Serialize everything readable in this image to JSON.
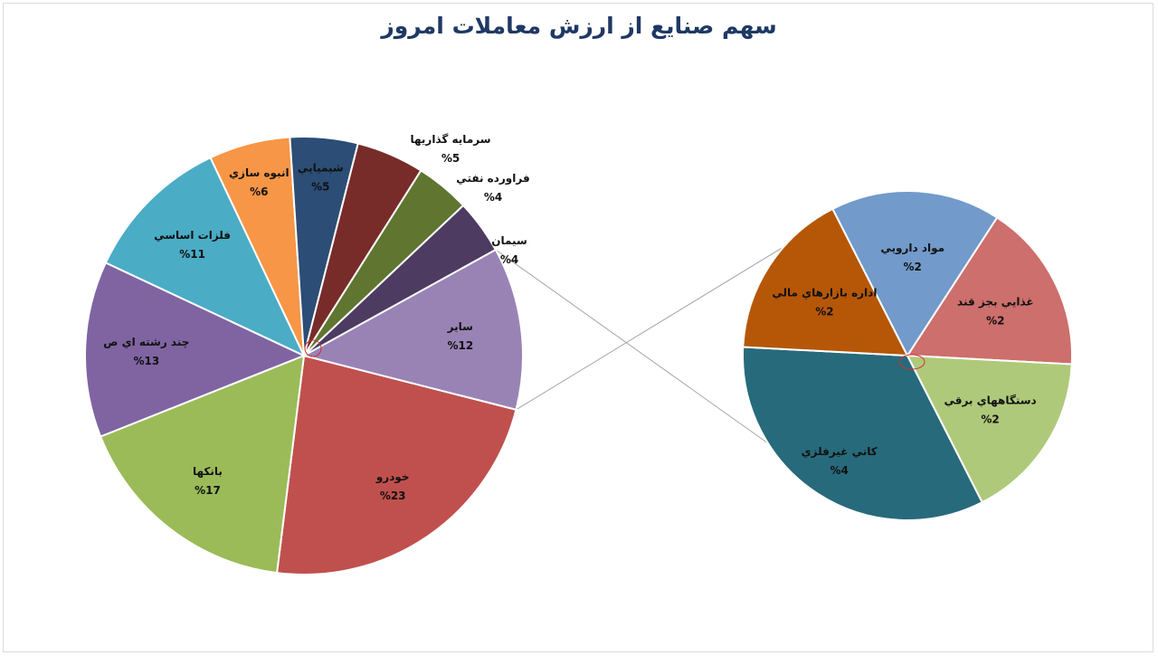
{
  "chart_data": {
    "type": "pie",
    "subtype": "pie-of-pie",
    "title": "سهم صنايع از ارزش معاملات امروز",
    "main": [
      {
        "label": "خودرو",
        "value_label": "%23",
        "value": 23,
        "color": "#c0504d"
      },
      {
        "label": "بانکها",
        "value_label": "%17",
        "value": 17,
        "color": "#9bbb59"
      },
      {
        "label": "چند رشته اي ص",
        "value_label": "%13",
        "value": 13,
        "color": "#8064a2"
      },
      {
        "label": "فلزات اساسي",
        "value_label": "%11",
        "value": 11,
        "color": "#4bacc6"
      },
      {
        "label": "انبوه سازي",
        "value_label": "%6",
        "value": 6,
        "color": "#f79646"
      },
      {
        "label": "شيميايي",
        "value_label": "%5",
        "value": 5,
        "color": "#2c4d75"
      },
      {
        "label": "سرمايه گذاريها",
        "value_label": "%5",
        "value": 5,
        "color": "#772c2a"
      },
      {
        "label": "فراورده نفتي",
        "value_label": "%4",
        "value": 4,
        "color": "#5f7530"
      },
      {
        "label": "سيمان",
        "value_label": "%4",
        "value": 4,
        "color": "#4d3b62"
      },
      {
        "label": "ساير",
        "value_label": "%12",
        "value": 12,
        "color": "#9983b5"
      }
    ],
    "secondary": [
      {
        "label": "غذايي بجز قند",
        "value_label": "%2",
        "value": 2,
        "color": "#cd6f6c"
      },
      {
        "label": "دستگاههاي برقي",
        "value_label": "%2",
        "value": 2,
        "color": "#afc97a"
      },
      {
        "label": "کاني غيرفلزي",
        "value_label": "%4",
        "value": 4,
        "color": "#276a7c"
      },
      {
        "label": "اداره بازارهاي مالي",
        "value_label": "%2",
        "value": 2,
        "color": "#b65708"
      },
      {
        "label": "مواد دارويي",
        "value_label": "%2",
        "value": 2,
        "color": "#729aca"
      }
    ]
  }
}
